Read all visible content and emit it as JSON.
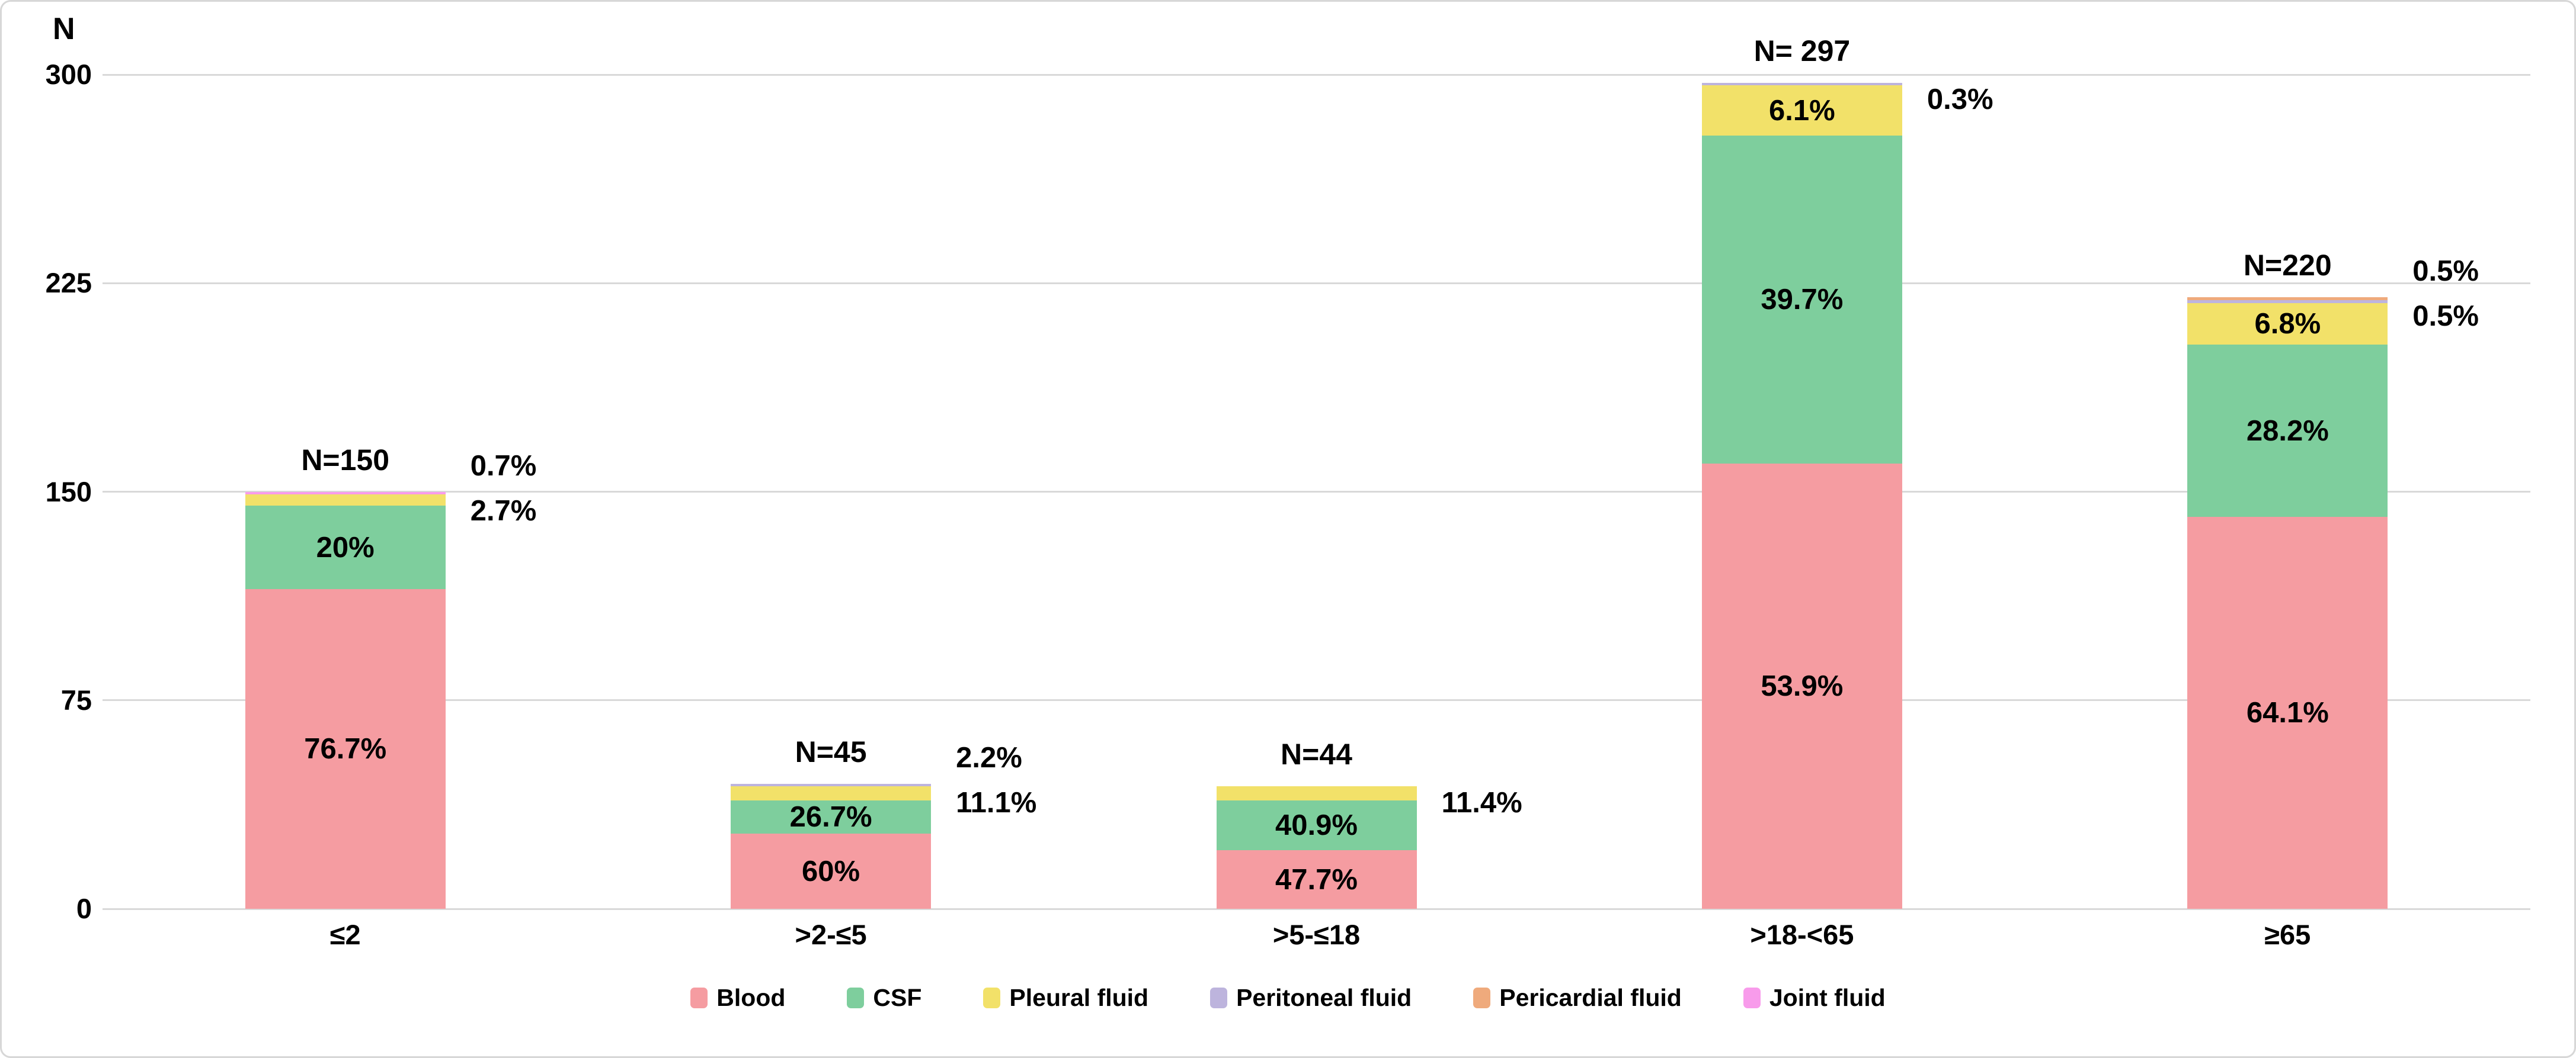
{
  "chart_data": {
    "type": "bar",
    "stacked": true,
    "title": "",
    "ylabel": "N",
    "xlabel": "",
    "ymax": 300,
    "yticks": [
      0,
      75,
      150,
      225,
      300
    ],
    "grid": true,
    "legend_position": "bottom",
    "categories": [
      "≤2",
      ">2-≤5",
      ">5-≤18",
      ">18-<65",
      "≥65"
    ],
    "bars": [
      {
        "category": "≤2",
        "n": 150,
        "n_label": "N=150",
        "segments": [
          {
            "series": "Blood",
            "pct": 76.7,
            "label": "76.7%",
            "label_pos": "inside"
          },
          {
            "series": "CSF",
            "pct": 20,
            "label": "20%",
            "label_pos": "inside"
          },
          {
            "series": "Pleural fluid",
            "pct": 2.7,
            "label": "2.7%",
            "label_pos": "right"
          },
          {
            "series": "Joint fluid",
            "pct": 0.7,
            "label": "0.7%",
            "label_pos": "right"
          }
        ]
      },
      {
        "category": ">2-≤5",
        "n": 45,
        "n_label": "N=45",
        "segments": [
          {
            "series": "Blood",
            "pct": 60,
            "label": "60%",
            "label_pos": "inside"
          },
          {
            "series": "CSF",
            "pct": 26.7,
            "label": "26.7%",
            "label_pos": "inside"
          },
          {
            "series": "Pleural fluid",
            "pct": 11.1,
            "label": "11.1%",
            "label_pos": "right"
          },
          {
            "series": "Peritoneal fluid",
            "pct": 2.2,
            "label": "2.2%",
            "label_pos": "right"
          }
        ]
      },
      {
        "category": ">5-≤18",
        "n": 44,
        "n_label": "N=44",
        "segments": [
          {
            "series": "Blood",
            "pct": 47.7,
            "label": "47.7%",
            "label_pos": "inside"
          },
          {
            "series": "CSF",
            "pct": 40.9,
            "label": "40.9%",
            "label_pos": "inside"
          },
          {
            "series": "Pleural fluid",
            "pct": 11.4,
            "label": "11.4%",
            "label_pos": "right"
          }
        ]
      },
      {
        "category": ">18-<65",
        "n": 297,
        "n_label": "N= 297",
        "segments": [
          {
            "series": "Blood",
            "pct": 53.9,
            "label": "53.9%",
            "label_pos": "inside"
          },
          {
            "series": "CSF",
            "pct": 39.7,
            "label": "39.7%",
            "label_pos": "inside"
          },
          {
            "series": "Pleural fluid",
            "pct": 6.1,
            "label": "6.1%",
            "label_pos": "inside"
          },
          {
            "series": "Peritoneal fluid",
            "pct": 0.3,
            "label": "0.3%",
            "label_pos": "right"
          }
        ]
      },
      {
        "category": "≥65",
        "n": 220,
        "n_label": "N=220",
        "segments": [
          {
            "series": "Blood",
            "pct": 64.1,
            "label": "64.1%",
            "label_pos": "inside"
          },
          {
            "series": "CSF",
            "pct": 28.2,
            "label": "28.2%",
            "label_pos": "inside"
          },
          {
            "series": "Pleural fluid",
            "pct": 6.8,
            "label": "6.8%",
            "label_pos": "inside"
          },
          {
            "series": "Peritoneal fluid",
            "pct": 0.5,
            "label": "0.5%",
            "label_pos": "right"
          },
          {
            "series": "Pericardial fluid",
            "pct": 0.5,
            "label": "0.5%",
            "label_pos": "right"
          }
        ]
      }
    ],
    "legend": [
      {
        "name": "Blood",
        "color": "#F59CA1"
      },
      {
        "name": "CSF",
        "color": "#7ECE9D"
      },
      {
        "name": "Pleural fluid",
        "color": "#F2E169"
      },
      {
        "name": "Peritoneal fluid",
        "color": "#BDB4DD"
      },
      {
        "name": "Pericardial fluid",
        "color": "#EFAA7C"
      },
      {
        "name": "Joint fluid",
        "color": "#F89BEB"
      }
    ],
    "colors": {
      "gridline": "#D9D9D9",
      "frame_border": "#D7D7D7",
      "label_text": "#000000"
    }
  }
}
